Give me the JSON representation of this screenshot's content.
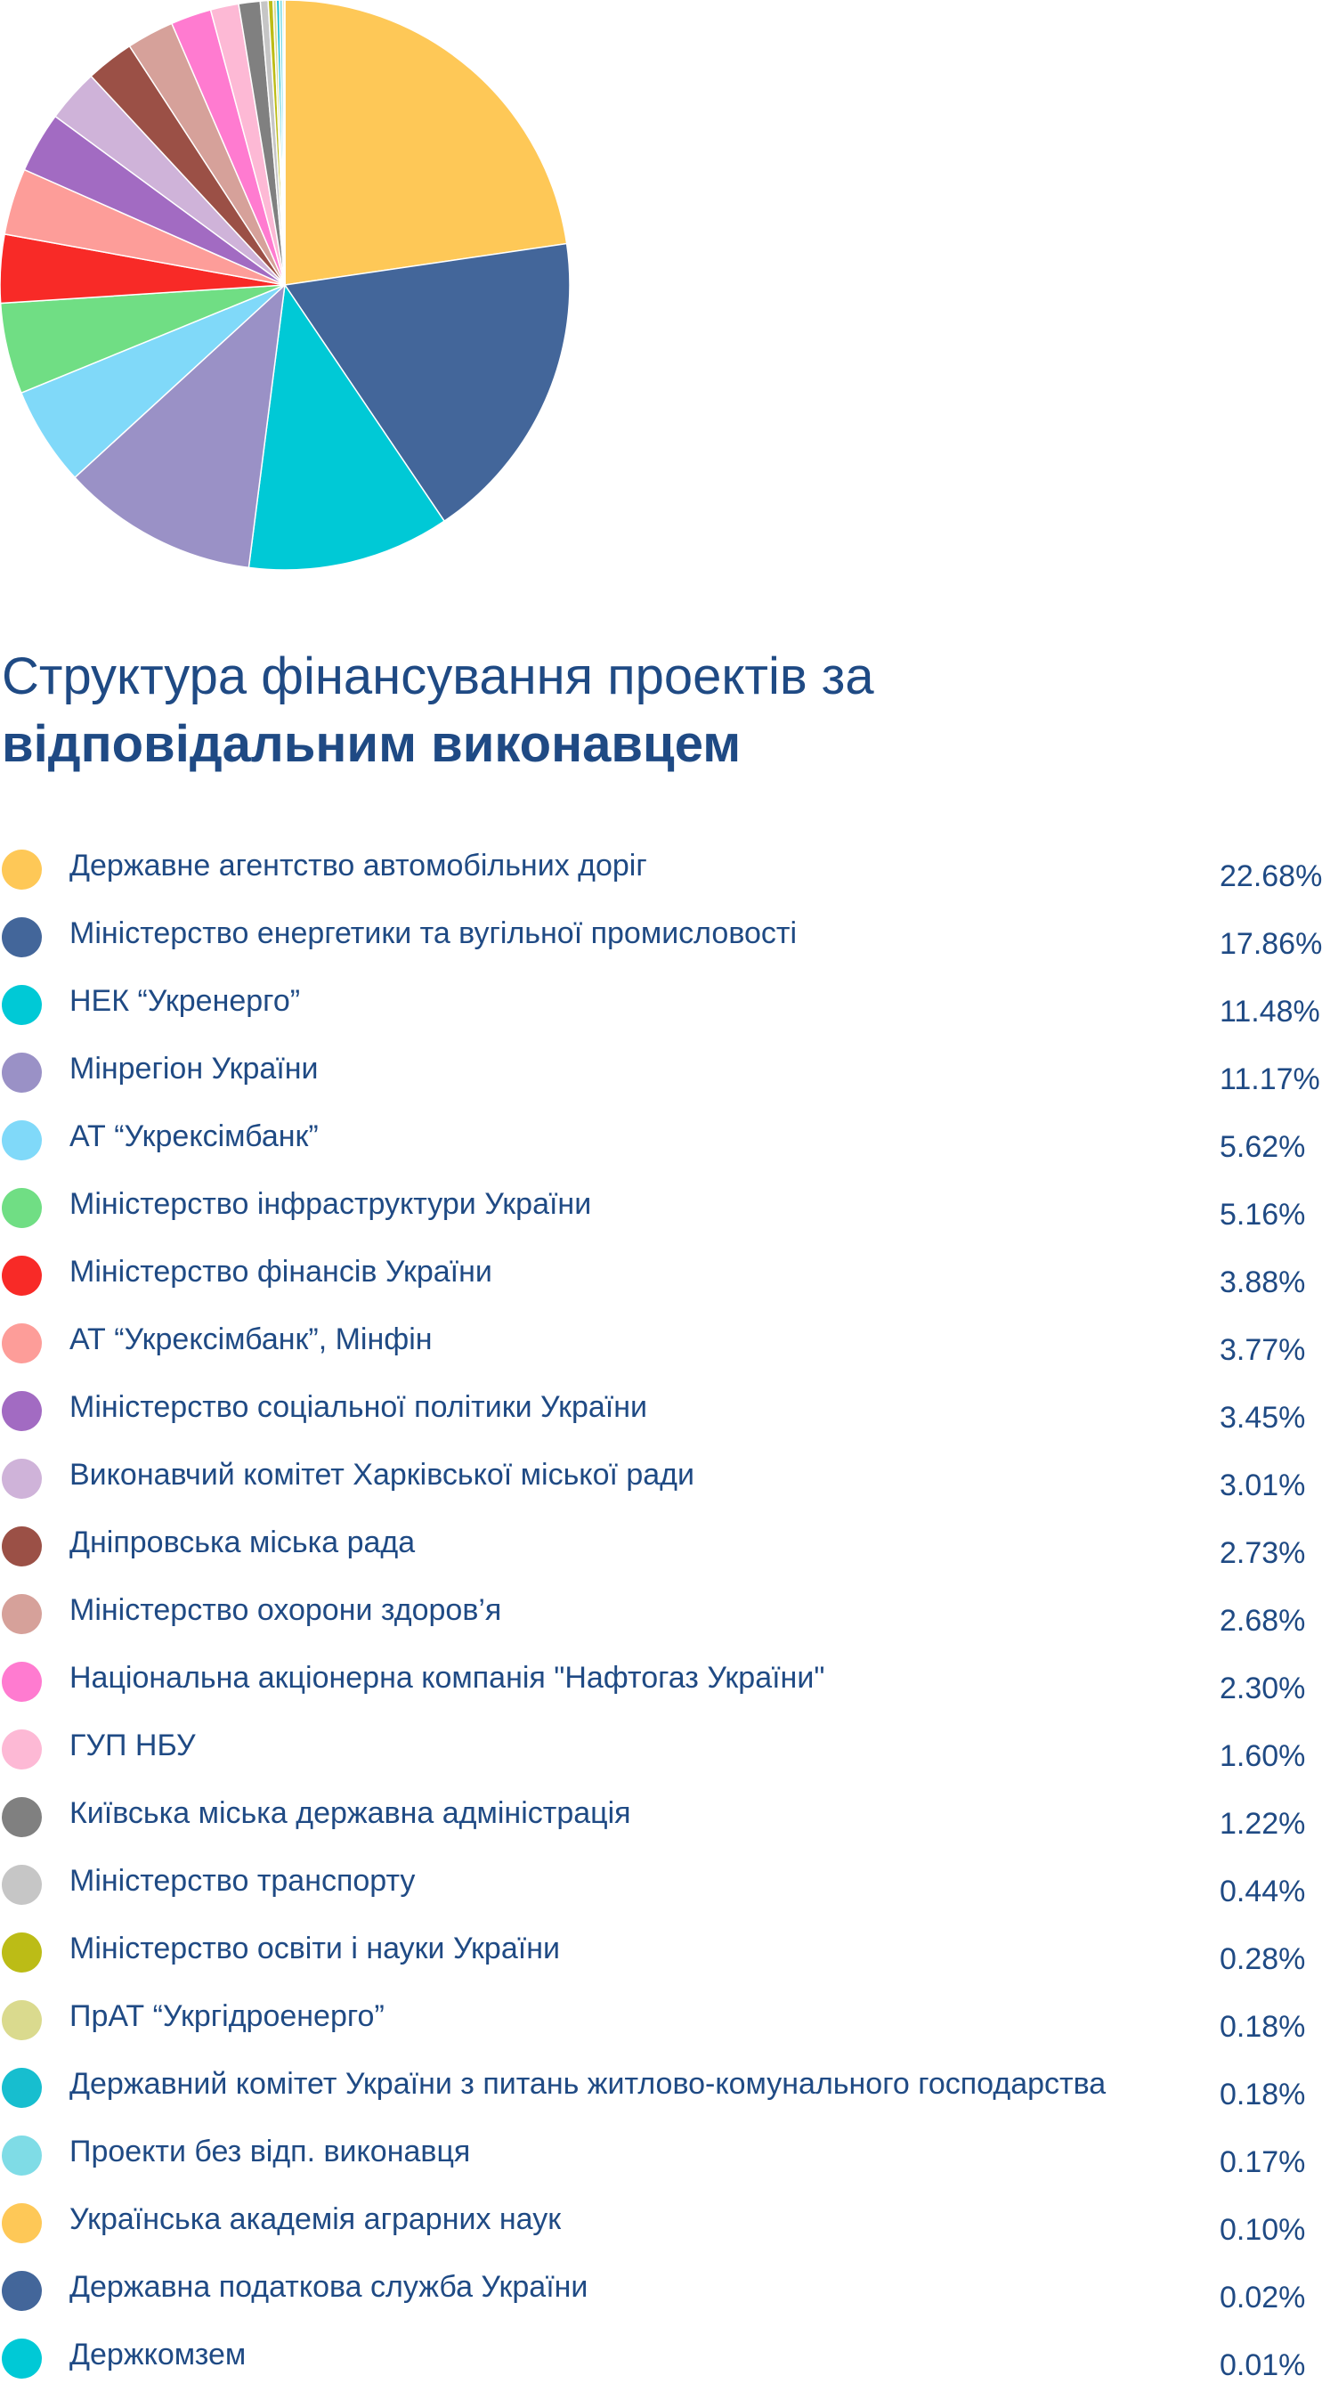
{
  "chart_data": {
    "type": "pie",
    "title": "Структура фінансування проектів за відповідальним виконавцем",
    "title_line1": "Структура фінансування проектів за",
    "title_line2": "відповідальним виконавцем",
    "legend_position": "bottom",
    "categories": [
      "Державне агентство автомобільних доріг",
      "Міністерство енергетики та вугільної промисловості",
      "НЕК “Укренерго”",
      "Мінрегіон України",
      "АТ “Укрексімбанк”",
      "Міністерство інфраструктури України",
      "Міністерство фінансів України",
      "АТ “Укрексімбанк”, Мінфін",
      "Міністерство соціальної політики України",
      "Виконавчий комітет Харківської міської ради",
      "Дніпровська міська рада",
      "Міністерство охорони здоров’я",
      "Національна акціонерна компанія \"Нафтогаз України\"",
      "ГУП НБУ",
      "Київська міська державна адміністрація",
      "Міністерство транспорту",
      "Міністерство освіти і науки України",
      "ПрАТ  “Укргідроенерго”",
      "Державний комітет України з питань житлово-комунального господарства",
      "Проекти без відп. виконавця",
      "Українська академія аграрних наук",
      "Державна податкова служба України",
      "Держкомзем"
    ],
    "values": [
      22.68,
      17.86,
      11.48,
      11.17,
      5.62,
      5.16,
      3.88,
      3.77,
      3.45,
      3.01,
      2.73,
      2.68,
      2.3,
      1.6,
      1.22,
      0.44,
      0.28,
      0.18,
      0.18,
      0.17,
      0.1,
      0.02,
      0.01
    ],
    "value_labels": [
      "22.68%",
      "17.86%",
      "11.48%",
      "11.17%",
      "5.62%",
      "5.16%",
      "3.88%",
      "3.77%",
      "3.45%",
      "3.01%",
      "2.73%",
      "2.68%",
      "2.30%",
      "1.60%",
      "1.22%",
      "0.44%",
      "0.28%",
      "0.18%",
      "0.18%",
      "0.17%",
      "0.10%",
      "0.02%",
      "0.01%"
    ],
    "colors": [
      "#fec857",
      "#43669a",
      "#00c9d6",
      "#9a91c6",
      "#80d9f9",
      "#70de84",
      "#f82a27",
      "#fd9d99",
      "#a26bc2",
      "#cfb3d9",
      "#9b5046",
      "#d6a19a",
      "#ff7bd0",
      "#fdb9d5",
      "#808080",
      "#c6c6c6",
      "#bcbc16",
      "#dada8e",
      "#17becf",
      "#7fdce6",
      "#fec857",
      "#43669a",
      "#00c9d6"
    ]
  }
}
